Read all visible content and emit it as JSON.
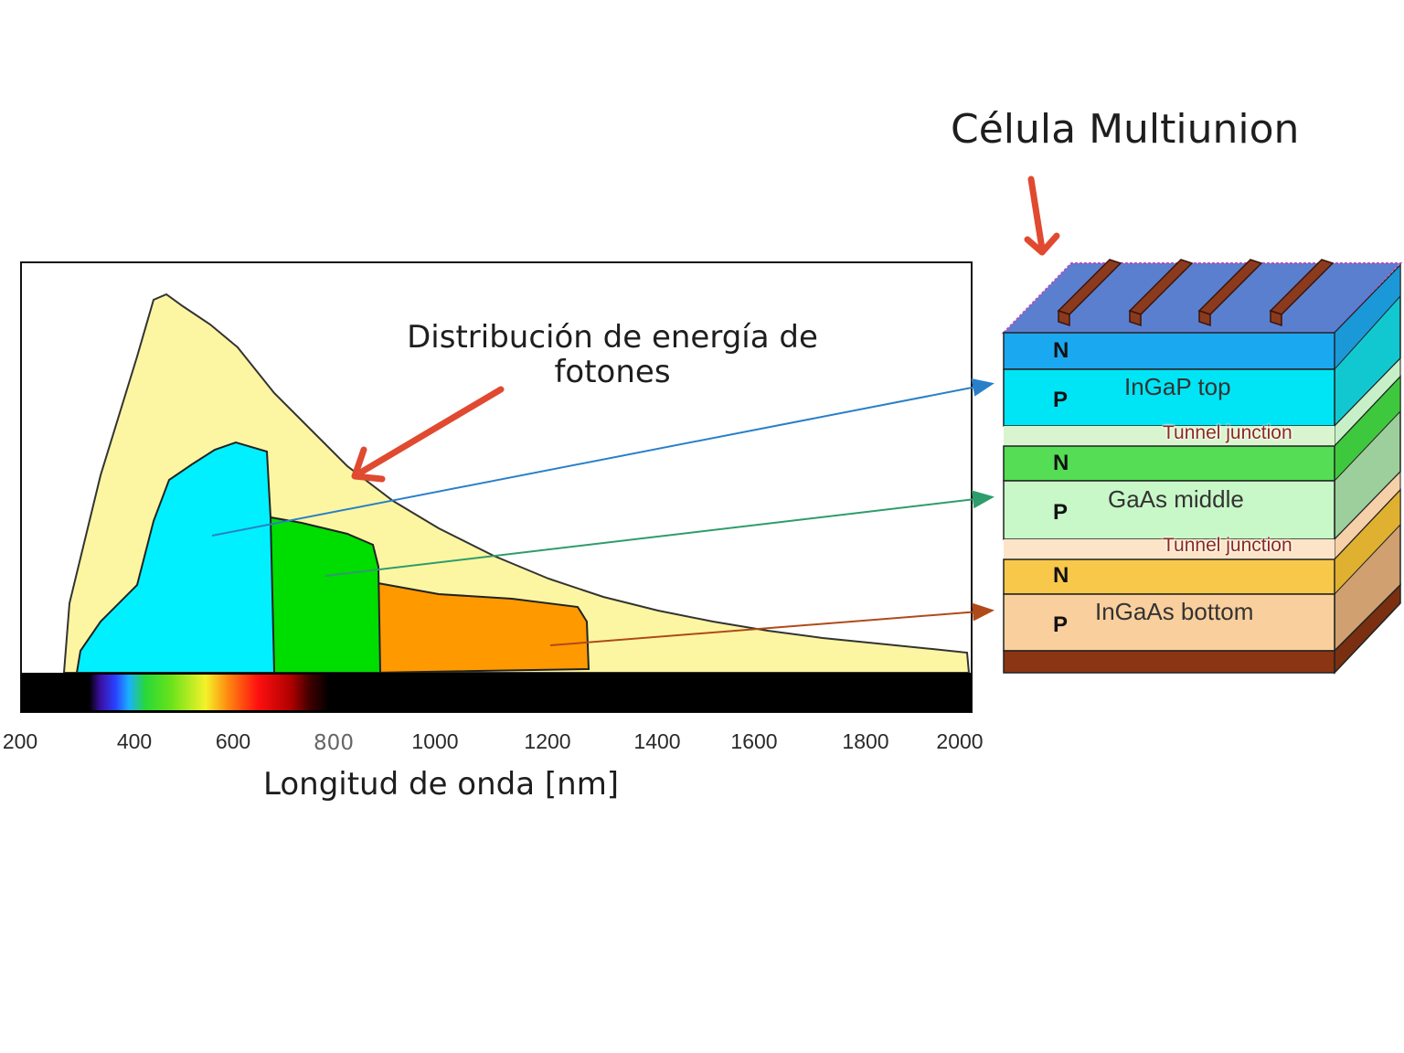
{
  "cell_title": "Célula Multiunion",
  "annotation": "Distribución de energía de fotones",
  "x_axis": {
    "title": "Longitud de onda [nm]",
    "ticks": [
      "200",
      "400",
      "600",
      "800",
      "1000",
      "1200",
      "1400",
      "1600",
      "1800",
      "2000"
    ]
  },
  "cell": {
    "layers": [
      {
        "name": "InGaP top",
        "n_label": "N",
        "p_label": "P",
        "color": "#00e5f5"
      },
      {
        "name": "GaAs middle",
        "n_label": "N",
        "p_label": "P",
        "color": "#c8f7c8"
      },
      {
        "name": "InGaAs bottom",
        "n_label": "N",
        "p_label": "P",
        "color": "#f9cf9d"
      }
    ],
    "tunnel_label": "Tunnel junction"
  },
  "colors": {
    "solar_spectrum": "#fcf6a2",
    "top_band": "#00f0ff",
    "middle_band": "#00dd00",
    "bottom_band": "#ff9900",
    "red_arrow": "#e04a30",
    "blue_arrow": "#2a7fc9",
    "green_arrow": "#2e9c6c",
    "brown_arrow": "#b04a1a"
  }
}
